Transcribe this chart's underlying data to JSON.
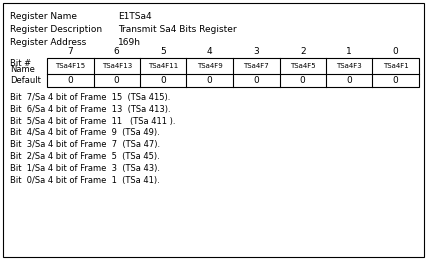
{
  "reg_name_label": "Register Name",
  "reg_name_value": "E1TSa4",
  "reg_desc_label": "Register Description",
  "reg_desc_value": "Transmit Sa4 Bits Register",
  "reg_addr_label": "Register Address",
  "reg_addr_value": "169h",
  "bit_numbers": [
    "7",
    "6",
    "5",
    "4",
    "3",
    "2",
    "1",
    "0"
  ],
  "bit_names": [
    "TSa4F15",
    "TSa4F13",
    "TSa4F11",
    "TSa4F9",
    "TSa4F7",
    "TSa4F5",
    "TSa4F3",
    "TSa4F1"
  ],
  "defaults": [
    "0",
    "0",
    "0",
    "0",
    "0",
    "0",
    "0",
    "0"
  ],
  "descriptions": [
    "Bit  7/Sa 4 bit of Frame  15  (TSa 415).",
    "Bit  6/Sa 4 bit of Frame  13  (TSa 413).",
    "Bit  5/Sa 4 bit of Frame  11   (TSa 411 ).",
    "Bit  4/Sa 4 bit of Frame  9  (TSa 49).",
    "Bit  3/Sa 4 bit of Frame  7  (TSa 47).",
    "Bit  2/Sa 4 bit of Frame  5  (TSa 45).",
    "Bit  1/Sa 4 bit of Frame  3  (TSa 43).",
    "Bit  0/Sa 4 bit of Frame  1  (TSa 41)."
  ],
  "bg_color": "#ffffff",
  "border_color": "#000000",
  "fig_width": 4.27,
  "fig_height": 2.6,
  "dpi": 100
}
